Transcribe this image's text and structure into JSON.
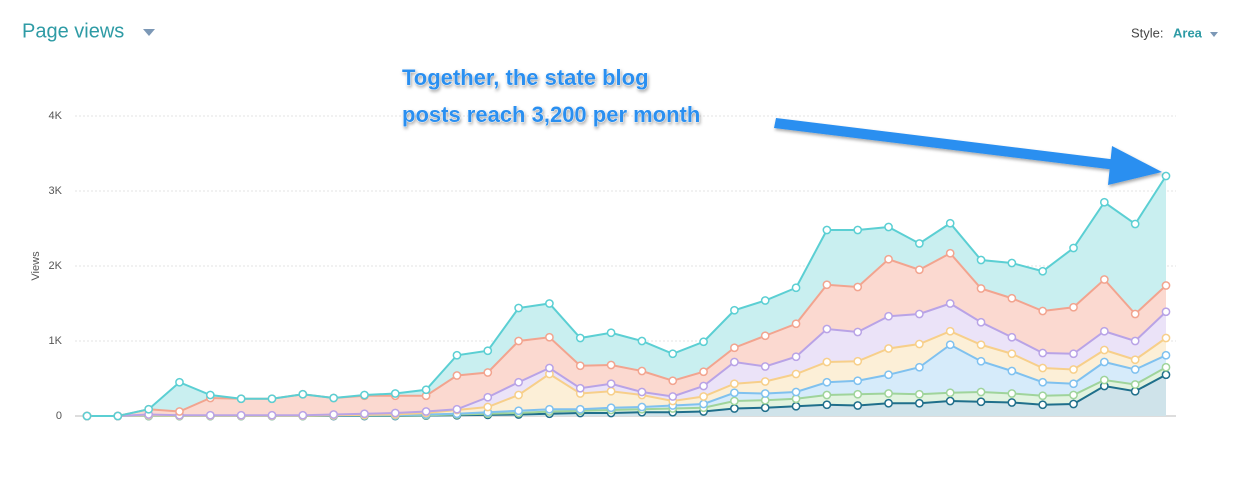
{
  "chart_data": {
    "type": "area",
    "stacked": true,
    "title": "Page views",
    "style_label": "Style:",
    "style_value": "Area",
    "ylabel": "Views",
    "annotation": [
      "Together, the state blog",
      "posts reach 3,200 per month"
    ],
    "ylim": [
      0,
      4000
    ],
    "yticks": [
      0,
      {
        "value": 1000,
        "label": "1K"
      },
      {
        "value": 2000,
        "label": "2K"
      },
      {
        "value": 3000,
        "label": "3K"
      },
      {
        "value": 4000,
        "label": "4K"
      }
    ],
    "grid": true,
    "series": [
      {
        "color": "#1f6f8b",
        "fill": "#cfe3ea",
        "values": [
          0,
          0,
          0,
          0,
          0,
          0,
          0,
          0,
          0,
          0,
          0,
          5,
          10,
          15,
          20,
          30,
          40,
          40,
          50,
          50,
          60,
          100,
          110,
          130,
          150,
          140,
          170,
          170,
          200,
          190,
          180,
          150,
          160,
          400,
          330,
          550
        ]
      },
      {
        "color": "#9fd49b",
        "fill": "#e2f3e0",
        "values": [
          0,
          0,
          0,
          0,
          0,
          0,
          0,
          0,
          5,
          5,
          5,
          5,
          10,
          15,
          20,
          30,
          30,
          40,
          40,
          50,
          50,
          100,
          100,
          100,
          130,
          150,
          130,
          120,
          110,
          130,
          120,
          120,
          120,
          80,
          90,
          100
        ]
      },
      {
        "color": "#7fc1ef",
        "fill": "#d6ebfa",
        "values": [
          0,
          0,
          5,
          5,
          5,
          5,
          5,
          5,
          0,
          5,
          5,
          10,
          10,
          20,
          30,
          30,
          20,
          30,
          30,
          40,
          50,
          110,
          90,
          90,
          170,
          180,
          250,
          360,
          640,
          410,
          300,
          180,
          150,
          240,
          200,
          160
        ]
      },
      {
        "color": "#f7cf8a",
        "fill": "#fcefd7",
        "values": [
          0,
          0,
          5,
          0,
          0,
          0,
          0,
          0,
          5,
          5,
          10,
          20,
          50,
          70,
          210,
          470,
          210,
          220,
          160,
          60,
          100,
          120,
          160,
          240,
          270,
          260,
          350,
          310,
          180,
          220,
          230,
          190,
          190,
          160,
          130,
          230
        ]
      },
      {
        "color": "#b9a3e6",
        "fill": "#ebe3f8",
        "values": [
          0,
          0,
          10,
          5,
          5,
          5,
          5,
          5,
          10,
          15,
          20,
          20,
          10,
          130,
          170,
          80,
          70,
          100,
          40,
          60,
          140,
          290,
          200,
          230,
          440,
          390,
          430,
          400,
          370,
          300,
          220,
          200,
          210,
          250,
          250,
          350
        ]
      },
      {
        "color": "#f2a48f",
        "fill": "#fbd9d0",
        "values": [
          0,
          0,
          70,
          50,
          230,
          220,
          220,
          280,
          220,
          240,
          230,
          210,
          450,
          330,
          550,
          410,
          300,
          250,
          280,
          210,
          190,
          190,
          410,
          440,
          590,
          600,
          760,
          590,
          670,
          450,
          520,
          560,
          620,
          690,
          360,
          350
        ]
      },
      {
        "color": "#5bcfd3",
        "fill": "#c9eff0",
        "values": [
          0,
          0,
          0,
          390,
          40,
          0,
          0,
          0,
          0,
          10,
          30,
          80,
          270,
          290,
          440,
          450,
          370,
          430,
          400,
          360,
          400,
          500,
          470,
          480,
          730,
          760,
          430,
          350,
          400,
          380,
          470,
          530,
          790,
          1030,
          1200,
          1460
        ]
      }
    ]
  }
}
